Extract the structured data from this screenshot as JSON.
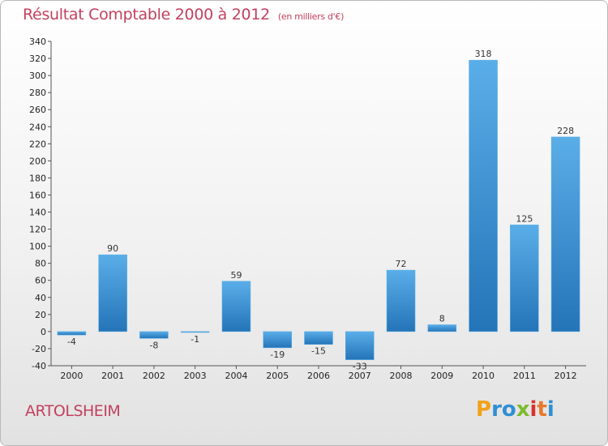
{
  "header": {
    "title": "Résultat Comptable 2000 à 2012",
    "unit": "(en milliers d'€)"
  },
  "footer": {
    "commune": "ARTOLSHEIM",
    "logo": {
      "letters": [
        "P",
        "r",
        "o",
        "x",
        "i",
        "t",
        "i"
      ],
      "colors": [
        "#f2a21a",
        "#2f8fd4",
        "#2f8fd4",
        "#7dbb2f",
        "#d9322e",
        "#e8792b",
        "#2f8fd4"
      ]
    }
  },
  "colors": {
    "title": "#c2415e",
    "bar_light": "#5aaee8",
    "bar_dark": "#2474b8"
  },
  "chart_data": {
    "type": "bar",
    "categories": [
      "2000",
      "2001",
      "2002",
      "2003",
      "2004",
      "2005",
      "2006",
      "2007",
      "2008",
      "2009",
      "2010",
      "2011",
      "2012"
    ],
    "values": [
      -4,
      90,
      -8,
      -1,
      59,
      -19,
      -15,
      -33,
      72,
      8,
      318,
      125,
      228
    ],
    "data_labels": [
      "-4",
      "90",
      "-8",
      "-1",
      "59",
      "-19",
      "-15",
      "-33",
      "72",
      "8",
      "318",
      "125",
      "228"
    ],
    "ylim": [
      -40,
      340
    ],
    "yticks": [
      -40,
      -20,
      0,
      20,
      40,
      60,
      80,
      100,
      120,
      140,
      160,
      180,
      200,
      220,
      240,
      260,
      280,
      300,
      320,
      340
    ],
    "grid": false
  }
}
